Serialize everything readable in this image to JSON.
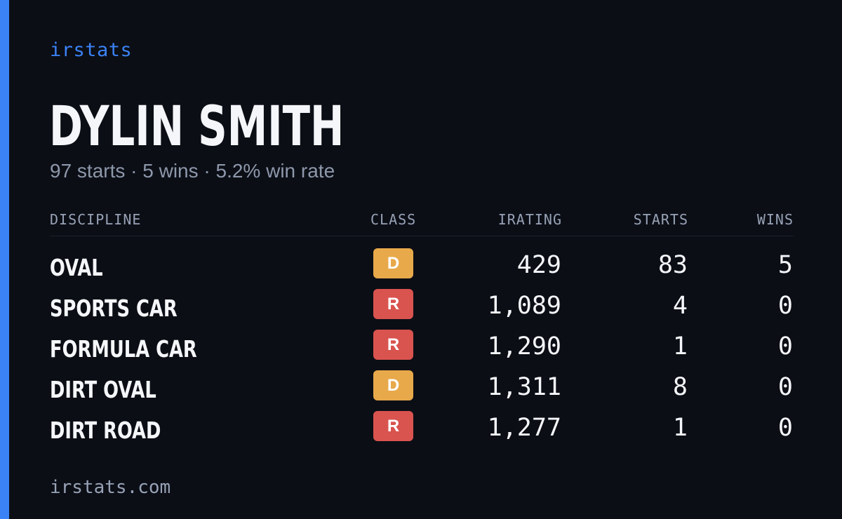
{
  "brand": "irstats",
  "driver": {
    "name": "DYLIN SMITH",
    "summary": "97 starts · 5 wins · 5.2% win rate"
  },
  "table": {
    "headers": {
      "discipline": "DISCIPLINE",
      "class": "CLASS",
      "irating": "IRATING",
      "starts": "STARTS",
      "wins": "WINS"
    },
    "rows": [
      {
        "discipline": "OVAL",
        "class": "D",
        "class_color": "#e8a94a",
        "irating": "429",
        "starts": "83",
        "wins": "5"
      },
      {
        "discipline": "SPORTS CAR",
        "class": "R",
        "class_color": "#d9534f",
        "irating": "1,089",
        "starts": "4",
        "wins": "0"
      },
      {
        "discipline": "FORMULA CAR",
        "class": "R",
        "class_color": "#d9534f",
        "irating": "1,290",
        "starts": "1",
        "wins": "0"
      },
      {
        "discipline": "DIRT OVAL",
        "class": "D",
        "class_color": "#e8a94a",
        "irating": "1,311",
        "starts": "8",
        "wins": "0"
      },
      {
        "discipline": "DIRT ROAD",
        "class": "R",
        "class_color": "#d9534f",
        "irating": "1,277",
        "starts": "1",
        "wins": "0"
      }
    ]
  },
  "footer": "irstats.com",
  "colors": {
    "accent": "#3b82f6",
    "background": "#0b0e15"
  }
}
